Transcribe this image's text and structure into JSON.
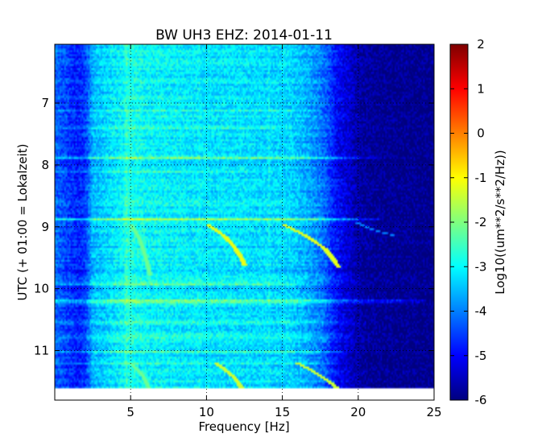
{
  "chart_data": {
    "type": "heatmap",
    "title": "BW UH3 EHZ: 2014-01-11",
    "xlabel": "Frequency [Hz]",
    "ylabel": "UTC (+ 01:00 = Lokalzeit)",
    "xlim": [
      0,
      25
    ],
    "ylim": [
      11.8,
      6.05
    ],
    "x_ticks": [
      5,
      10,
      15,
      20,
      25
    ],
    "y_ticks": [
      7,
      8,
      9,
      10,
      11
    ],
    "grid": true,
    "colorbar": {
      "label": "Log10((um**2/s**2/Hz))",
      "range": [
        -6,
        2
      ],
      "ticks": [
        -6,
        -5,
        -4,
        -3,
        -2,
        -1,
        0,
        1,
        2
      ],
      "colormap": "jet"
    },
    "colors": {
      "jet": [
        "#00007f",
        "#0000ff",
        "#007fff",
        "#00ffff",
        "#7fff7f",
        "#ffff00",
        "#ff7f00",
        "#ff0000",
        "#7f0000"
      ]
    },
    "data_end_time": 11.6,
    "features": {
      "background_profile": {
        "freq": [
          0,
          0.8,
          1.5,
          2.0,
          2.5,
          3.5,
          4.5,
          5.0,
          6.0,
          8.0,
          10.0,
          12.0,
          14.0,
          15.5,
          16.5,
          17.5,
          18.0,
          18.5,
          19.0,
          19.5,
          20.0,
          21.0,
          25.0
        ],
        "log10_psd": [
          -4.2,
          -4.5,
          -4.8,
          -4.6,
          -3.6,
          -3.3,
          -3.0,
          -2.8,
          -3.0,
          -3.1,
          -3.2,
          -3.2,
          -3.3,
          -3.3,
          -3.6,
          -4.0,
          -4.4,
          -4.9,
          -5.2,
          -5.4,
          -5.7,
          -5.85,
          -5.95
        ]
      },
      "time_bands": [
        {
          "t": 7.12,
          "fmax": 17.5,
          "boost": 0.6
        },
        {
          "t": 7.4,
          "fmax": 16.0,
          "boost": 0.4
        },
        {
          "t": 7.88,
          "fmax": 21.5,
          "boost": 1.0
        },
        {
          "t": 8.1,
          "fmax": 15.0,
          "boost": 0.8
        },
        {
          "t": 8.6,
          "fmax": 17.0,
          "boost": 0.5
        },
        {
          "t": 8.88,
          "fmax": 21.5,
          "boost": 1.5
        },
        {
          "t": 9.4,
          "fmax": 16.0,
          "boost": 0.5
        },
        {
          "t": 9.92,
          "fmax": 16.5,
          "boost": 1.0
        },
        {
          "t": 10.2,
          "fmax": 24.5,
          "boost": 1.6
        },
        {
          "t": 10.55,
          "fmax": 20.5,
          "boost": 0.8
        },
        {
          "t": 10.78,
          "fmax": 19.5,
          "boost": 0.6
        },
        {
          "t": 11.02,
          "fmax": 19.0,
          "boost": 0.6
        },
        {
          "t": 11.2,
          "fmax": 19.0,
          "boost": 0.8
        }
      ],
      "freq_lines": [
        {
          "f": 4.7,
          "boost": 0.4
        },
        {
          "f": 14.1,
          "boost": 0.3
        },
        {
          "f": 9.5,
          "boost": 0.2
        }
      ],
      "tracks": [
        {
          "t": [
            8.95,
            9.15,
            9.35,
            9.5,
            9.62
          ],
          "f": [
            10.0,
            11.2,
            11.9,
            12.3,
            12.5
          ],
          "value": -1.0
        },
        {
          "t": [
            8.95,
            9.15,
            9.35,
            9.5,
            9.65
          ],
          "f": [
            15.0,
            16.6,
            17.8,
            18.3,
            18.7
          ],
          "value": -1.0
        },
        {
          "t": [
            8.95,
            9.2,
            9.5,
            9.8
          ],
          "f": [
            5.0,
            5.6,
            6.0,
            6.3
          ],
          "value": -2.0
        },
        {
          "t": [
            11.18,
            11.3,
            11.45,
            11.6
          ],
          "f": [
            10.5,
            11.2,
            11.9,
            12.3
          ],
          "value": -1.2
        },
        {
          "t": [
            11.18,
            11.3,
            11.45,
            11.6
          ],
          "f": [
            15.8,
            16.8,
            17.8,
            18.6
          ],
          "value": -1.2
        },
        {
          "t": [
            11.2,
            11.4,
            11.6
          ],
          "f": [
            5.0,
            5.8,
            6.2
          ],
          "value": -2.0
        },
        {
          "t": [
            8.92,
            9.05,
            9.15
          ],
          "f": [
            19.8,
            21.0,
            22.5
          ],
          "value": -3.8
        }
      ]
    }
  }
}
